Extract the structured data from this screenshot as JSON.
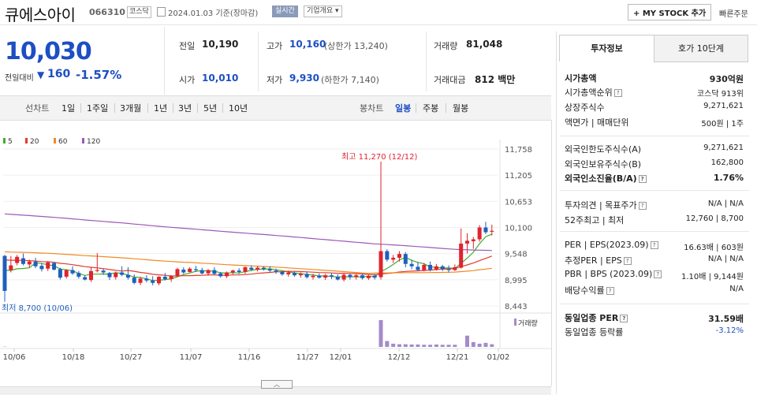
{
  "header": {
    "title": "큐에스아이",
    "code": "066310",
    "market": "코스닥",
    "date": "2024.01.03  기준(장마감)",
    "realtime": "실시간",
    "corp_info": "기업개요 ▾",
    "mystock": "+ MY STOCK 추가",
    "quick_order": "빠른주문"
  },
  "quote": {
    "price": "10,030",
    "prev_label": "전일대비",
    "change": "160",
    "rate": "-1.57%",
    "items": {
      "prev_close_label": "전일",
      "prev_close": "10,190",
      "high_label": "고가",
      "high": "10,160",
      "upper_limit": "(상한가 13,240)",
      "volume_label": "거래량",
      "volume": "81,048",
      "open_label": "시가",
      "open": "10,010",
      "low_label": "저가",
      "low": "9,930",
      "lower_limit": "(하한가 7,140)",
      "amount_label": "거래대금",
      "amount": "812 백만"
    }
  },
  "period_tabs": {
    "line_label": "선차트",
    "line": [
      "1일",
      "1주일",
      "3개월",
      "1년",
      "3년",
      "5년",
      "10년"
    ],
    "candle_label": "봉차트",
    "candle": [
      "일봉",
      "주봉",
      "월봉"
    ],
    "active": "일봉"
  },
  "chart_data": {
    "type": "candlestick",
    "legend": [
      {
        "name": "5",
        "color": "#3fae2a"
      },
      {
        "name": "20",
        "color": "#e23b2e"
      },
      {
        "name": "60",
        "color": "#f08a24"
      },
      {
        "name": "120",
        "color": "#9b59b6"
      }
    ],
    "y_ticks": [
      "11,758",
      "11,205",
      "10,653",
      "10,100",
      "9,548",
      "8,995",
      "8,443"
    ],
    "ylim": [
      8443,
      11758
    ],
    "x_labels": [
      "10/06",
      "10/18",
      "10/27",
      "11/07",
      "11/16",
      "11/27",
      "12/01",
      "12/12",
      "12/21",
      "01/02"
    ],
    "max_annotation": "최고 11,270 (12/12)",
    "min_annotation": "최저 8,700 (10/06)",
    "volume_label": "거래량",
    "candles": [
      [
        9500,
        9520,
        8700,
        8760
      ],
      [
        9200,
        9500,
        9150,
        9300
      ],
      [
        9350,
        9520,
        9300,
        9480
      ],
      [
        9450,
        9550,
        9300,
        9330
      ],
      [
        9320,
        9420,
        9250,
        9380
      ],
      [
        9380,
        9460,
        9240,
        9280
      ],
      [
        9290,
        9350,
        9170,
        9220
      ],
      [
        9230,
        9390,
        9180,
        9360
      ],
      [
        9350,
        9370,
        9190,
        9210
      ],
      [
        9220,
        9250,
        9000,
        9040
      ],
      [
        9060,
        9220,
        9020,
        9200
      ],
      [
        9200,
        9280,
        9100,
        9130
      ],
      [
        9140,
        9180,
        9020,
        9060
      ],
      [
        9050,
        9090,
        8980,
        9000
      ],
      [
        8990,
        9260,
        8950,
        9180
      ],
      [
        9180,
        9560,
        9150,
        9200
      ],
      [
        9190,
        9230,
        9100,
        9150
      ],
      [
        9140,
        9160,
        8990,
        9050
      ],
      [
        9050,
        9170,
        9000,
        9140
      ],
      [
        9150,
        9280,
        9070,
        9100
      ],
      [
        9100,
        9260,
        9000,
        9040
      ],
      [
        9040,
        9110,
        8900,
        8930
      ],
      [
        8930,
        9060,
        8880,
        9020
      ],
      [
        9020,
        9090,
        8940,
        8980
      ],
      [
        8980,
        9070,
        8880,
        8930
      ],
      [
        8920,
        9070,
        8880,
        9060
      ],
      [
        9060,
        9140,
        8980,
        9010
      ],
      [
        9010,
        9090,
        8950,
        9080
      ],
      [
        9080,
        9250,
        9050,
        9220
      ],
      [
        9210,
        9260,
        9120,
        9150
      ],
      [
        9160,
        9260,
        9150,
        9230
      ],
      [
        9220,
        9290,
        9160,
        9200
      ],
      [
        9200,
        9250,
        9110,
        9130
      ],
      [
        9130,
        9220,
        9080,
        9200
      ],
      [
        9200,
        9260,
        9090,
        9120
      ],
      [
        9130,
        9160,
        9040,
        9070
      ],
      [
        9070,
        9170,
        9030,
        9150
      ],
      [
        9150,
        9210,
        9110,
        9190
      ],
      [
        9190,
        9240,
        9120,
        9160
      ],
      [
        9160,
        9280,
        9120,
        9260
      ],
      [
        9250,
        9300,
        9180,
        9210
      ],
      [
        9210,
        9290,
        9170,
        9250
      ],
      [
        9250,
        9280,
        9190,
        9220
      ],
      [
        9220,
        9280,
        9150,
        9190
      ],
      [
        9190,
        9230,
        9120,
        9160
      ],
      [
        9160,
        9180,
        9080,
        9110
      ],
      [
        9110,
        9190,
        9060,
        9150
      ],
      [
        9140,
        9170,
        9060,
        9090
      ],
      [
        9090,
        9150,
        9040,
        9120
      ],
      [
        9120,
        9170,
        9020,
        9050
      ],
      [
        9050,
        9120,
        9000,
        9080
      ],
      [
        9080,
        9130,
        9020,
        9040
      ],
      [
        9040,
        9120,
        8990,
        9090
      ],
      [
        9090,
        9140,
        9010,
        9060
      ],
      [
        9060,
        9110,
        8980,
        9000
      ],
      [
        9000,
        9130,
        8960,
        9100
      ],
      [
        9100,
        9120,
        9000,
        9050
      ],
      [
        9050,
        9120,
        9000,
        9090
      ],
      [
        9090,
        9130,
        9000,
        9030
      ],
      [
        9030,
        9100,
        8990,
        9080
      ],
      [
        9080,
        9120,
        9000,
        9040
      ],
      [
        9050,
        11270,
        9000,
        9600
      ],
      [
        9600,
        9640,
        9380,
        9420
      ],
      [
        9420,
        9520,
        9350,
        9460
      ],
      [
        9460,
        9600,
        9380,
        9540
      ],
      [
        9540,
        9580,
        9260,
        9330
      ],
      [
        9330,
        9420,
        9220,
        9280
      ],
      [
        9270,
        9370,
        9180,
        9200
      ],
      [
        9200,
        9350,
        9170,
        9310
      ],
      [
        9310,
        9380,
        9170,
        9210
      ],
      [
        9210,
        9330,
        9190,
        9280
      ],
      [
        9280,
        9310,
        9180,
        9220
      ],
      [
        9220,
        9300,
        9150,
        9200
      ],
      [
        9200,
        9320,
        9180,
        9260
      ],
      [
        9250,
        10080,
        9230,
        9760
      ],
      [
        9760,
        9980,
        9550,
        9820
      ],
      [
        9810,
        9900,
        9650,
        9850
      ],
      [
        9850,
        10150,
        9800,
        10100
      ],
      [
        10100,
        10220,
        9960,
        10000
      ],
      [
        10010,
        10160,
        9930,
        10030
      ]
    ],
    "volumes": [
      1,
      0,
      0,
      0,
      0,
      0,
      0,
      0,
      0,
      0,
      0,
      0,
      0,
      0,
      0,
      0,
      0,
      0,
      0,
      0,
      0,
      0,
      0,
      0,
      0,
      0,
      0,
      0,
      0,
      0,
      0,
      0,
      0,
      0,
      0,
      0,
      0,
      0,
      0,
      0,
      0,
      0,
      0,
      0,
      0,
      0,
      0,
      0,
      0,
      0,
      0,
      0,
      0,
      0,
      0,
      0,
      0,
      0,
      0,
      0,
      0,
      100,
      22,
      12,
      10,
      10,
      9,
      9,
      8,
      8,
      9,
      8,
      8,
      8,
      0,
      42,
      18,
      12,
      15,
      10
    ]
  },
  "panel": {
    "tab_invest": "투자정보",
    "tab_hoga": "호가 10단계",
    "rows": [
      {
        "label": "시가총액",
        "value": "930억원",
        "bold": true
      },
      {
        "label": "시가총액순위",
        "value": "코스닥 913위"
      },
      {
        "label": "상장주식수",
        "value": "9,271,621"
      },
      {
        "label": "액면가 | 매매단위",
        "value": "500원 | 1주"
      },
      {
        "label": "외국인한도주식수(A)",
        "value": "9,271,621"
      },
      {
        "label": "외국인보유주식수(B)",
        "value": "162,800"
      },
      {
        "label": "외국인소진율(B/A)",
        "value": "1.76%",
        "bold": true
      },
      {
        "label": "투자의견 | 목표주가",
        "value": "N/A | N/A"
      },
      {
        "label": "52주최고 | 최저",
        "value": "12,760 | 8,700"
      },
      {
        "label": "PER | EPS(2023.09)",
        "value": "16.63배 | 603원"
      },
      {
        "label": "추정PER | EPS",
        "value": "N/A | N/A"
      },
      {
        "label": "PBR | BPS (2023.09)",
        "value": "1.10배 | 9,144원"
      },
      {
        "label": "배당수익률",
        "value": "N/A"
      },
      {
        "label": "동일업종 PER",
        "value": "31.59배",
        "bold": true
      },
      {
        "label": "동일업종 등락률",
        "value": "-3.12%",
        "blue": true
      }
    ]
  }
}
